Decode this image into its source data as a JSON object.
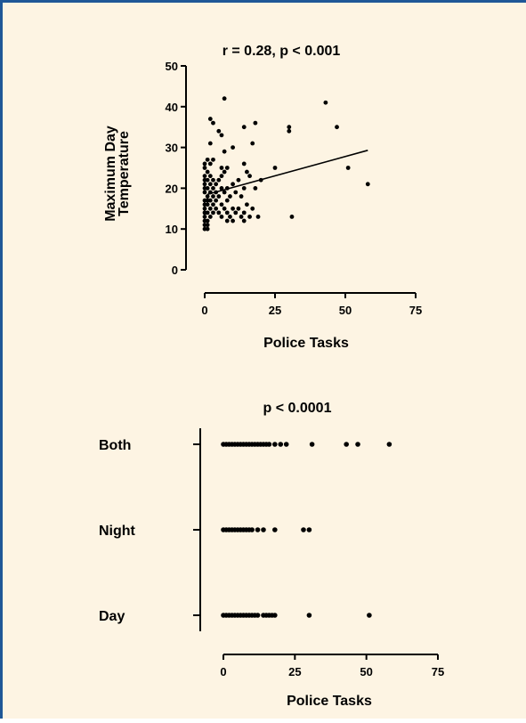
{
  "chart_data": [
    {
      "type": "scatter",
      "title": "r = 0.28, p < 0.001",
      "xlabel": "Police Tasks",
      "ylabel": [
        "Maximum Day",
        "Temperature"
      ],
      "xlim": [
        0,
        75
      ],
      "ylim": [
        0,
        50
      ],
      "xticks": [
        0,
        25,
        50,
        75
      ],
      "yticks": [
        0,
        10,
        20,
        30,
        40,
        50
      ],
      "grid": false,
      "legend": "none",
      "regression_line": {
        "x": [
          1,
          58
        ],
        "y": [
          18.5,
          29.3
        ]
      },
      "points": [
        [
          7,
          42
        ],
        [
          43,
          41
        ],
        [
          2,
          37
        ],
        [
          3,
          36
        ],
        [
          18,
          36
        ],
        [
          14,
          35
        ],
        [
          30,
          35
        ],
        [
          47,
          35
        ],
        [
          5,
          34
        ],
        [
          30,
          34
        ],
        [
          6,
          33
        ],
        [
          2,
          31
        ],
        [
          10,
          30
        ],
        [
          7,
          29
        ],
        [
          17,
          31
        ],
        [
          1,
          27
        ],
        [
          3,
          27
        ],
        [
          0,
          26
        ],
        [
          2,
          26
        ],
        [
          6,
          25
        ],
        [
          8,
          25
        ],
        [
          14,
          26
        ],
        [
          25,
          25
        ],
        [
          51,
          25
        ],
        [
          0,
          25
        ],
        [
          1,
          24
        ],
        [
          7,
          24
        ],
        [
          15,
          24
        ],
        [
          0,
          23
        ],
        [
          2,
          23
        ],
        [
          6,
          23
        ],
        [
          16,
          23
        ],
        [
          0,
          22
        ],
        [
          1,
          22
        ],
        [
          3,
          22
        ],
        [
          5,
          22
        ],
        [
          12,
          22
        ],
        [
          20,
          22
        ],
        [
          0,
          21
        ],
        [
          2,
          21
        ],
        [
          4,
          21
        ],
        [
          10,
          21
        ],
        [
          58,
          21
        ],
        [
          0,
          20
        ],
        [
          1,
          20
        ],
        [
          3,
          20
        ],
        [
          6,
          20
        ],
        [
          8,
          20
        ],
        [
          14,
          20
        ],
        [
          18,
          20
        ],
        [
          0,
          19
        ],
        [
          2,
          19
        ],
        [
          4,
          19
        ],
        [
          7,
          19
        ],
        [
          11,
          19
        ],
        [
          1,
          18
        ],
        [
          3,
          18
        ],
        [
          5,
          18
        ],
        [
          9,
          18
        ],
        [
          13,
          18
        ],
        [
          0,
          17
        ],
        [
          1,
          17
        ],
        [
          2,
          17
        ],
        [
          4,
          17
        ],
        [
          8,
          17
        ],
        [
          0,
          16
        ],
        [
          1,
          16
        ],
        [
          3,
          16
        ],
        [
          6,
          16
        ],
        [
          15,
          16
        ],
        [
          0,
          15
        ],
        [
          2,
          15
        ],
        [
          4,
          15
        ],
        [
          7,
          15
        ],
        [
          10,
          15
        ],
        [
          12,
          15
        ],
        [
          17,
          15
        ],
        [
          0,
          14
        ],
        [
          1,
          14
        ],
        [
          3,
          14
        ],
        [
          5,
          14
        ],
        [
          8,
          14
        ],
        [
          11,
          14
        ],
        [
          14,
          14
        ],
        [
          0,
          13
        ],
        [
          2,
          13
        ],
        [
          6,
          13
        ],
        [
          9,
          13
        ],
        [
          13,
          13
        ],
        [
          16,
          13
        ],
        [
          19,
          13
        ],
        [
          31,
          13
        ],
        [
          0,
          12
        ],
        [
          1,
          12
        ],
        [
          8,
          12
        ],
        [
          10,
          12
        ],
        [
          14,
          12
        ],
        [
          0,
          11
        ],
        [
          1,
          11
        ],
        [
          0,
          10
        ],
        [
          1,
          10
        ]
      ]
    },
    {
      "type": "scatter",
      "title": "p < 0.0001",
      "xlabel": "Police Tasks",
      "xlim": [
        0,
        75
      ],
      "xticks": [
        0,
        25,
        50,
        75
      ],
      "categories": [
        "Both",
        "Night",
        "Day"
      ],
      "grid": false,
      "legend": "none",
      "series": [
        {
          "category": "Both",
          "values": [
            0,
            1,
            2,
            3,
            4,
            5,
            6,
            7,
            8,
            9,
            10,
            11,
            12,
            13,
            14,
            15,
            16,
            18,
            20,
            22,
            31,
            43,
            47,
            58
          ]
        },
        {
          "category": "Night",
          "values": [
            0,
            1,
            2,
            3,
            4,
            5,
            6,
            7,
            8,
            9,
            10,
            12,
            14,
            18,
            28,
            30
          ]
        },
        {
          "category": "Day",
          "values": [
            0,
            1,
            2,
            3,
            4,
            5,
            6,
            7,
            8,
            9,
            10,
            11,
            12,
            14,
            15,
            16,
            17,
            18,
            30,
            51
          ]
        }
      ]
    }
  ]
}
